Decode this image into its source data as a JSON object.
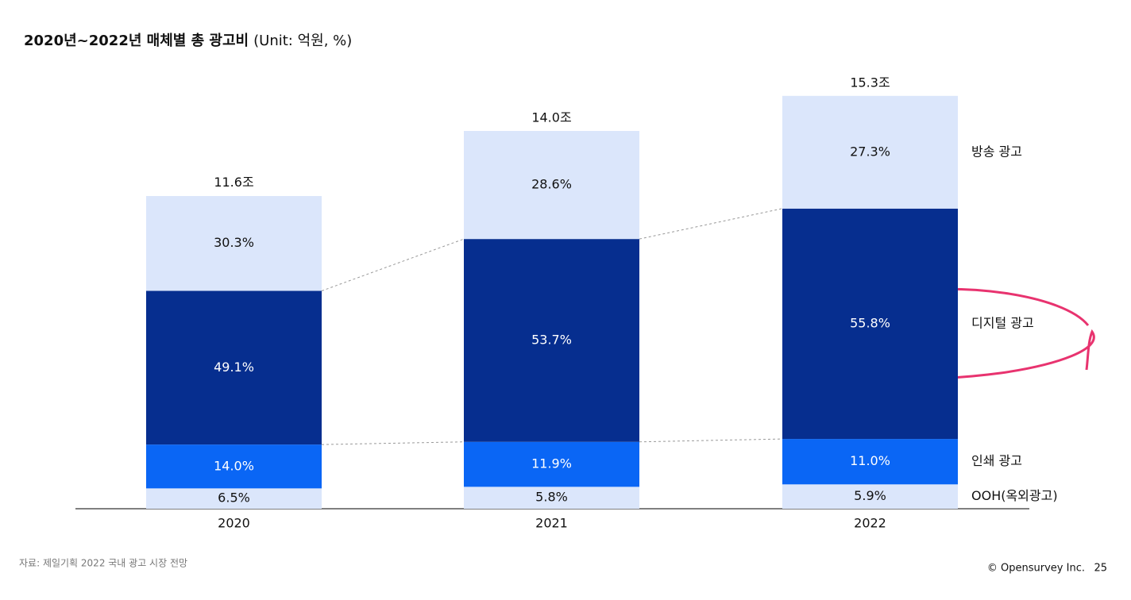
{
  "chart_data": {
    "type": "stacked_bar",
    "title": "2020년~2022년 매체별 총 광고비",
    "unit_note": "(Unit: 억원, %)",
    "categories": [
      "2020",
      "2021",
      "2022"
    ],
    "totals": {
      "values": [
        11.6,
        14.0,
        15.3
      ],
      "value_labels": [
        "11.6조",
        "14.0조",
        "15.3조"
      ]
    },
    "series": [
      {
        "name": "OOH(옥외광고)",
        "color": "#dbe6fb",
        "values": [
          6.5,
          5.8,
          5.9
        ],
        "value_labels": [
          "6.5%",
          "5.8%",
          "5.9%"
        ]
      },
      {
        "name": "인쇄 광고",
        "color": "#0a66f5",
        "values": [
          14.0,
          11.9,
          11.0
        ],
        "value_labels": [
          "14.0%",
          "11.9%",
          "11.0%"
        ]
      },
      {
        "name": "디지털 광고",
        "color": "#062e8f",
        "values": [
          49.1,
          53.7,
          55.8
        ],
        "value_labels": [
          "49.1%",
          "53.7%",
          "55.8%"
        ]
      },
      {
        "name": "방송 광고",
        "color": "#dbe6fb",
        "values": [
          30.3,
          28.6,
          27.3
        ],
        "value_labels": [
          "30.3%",
          "28.6%",
          "27.3%"
        ]
      }
    ],
    "source": "자료: 제일기획 2022 국내 광고 시장 전망",
    "footer": "© Opensurvey Inc.",
    "page_number": "25"
  }
}
